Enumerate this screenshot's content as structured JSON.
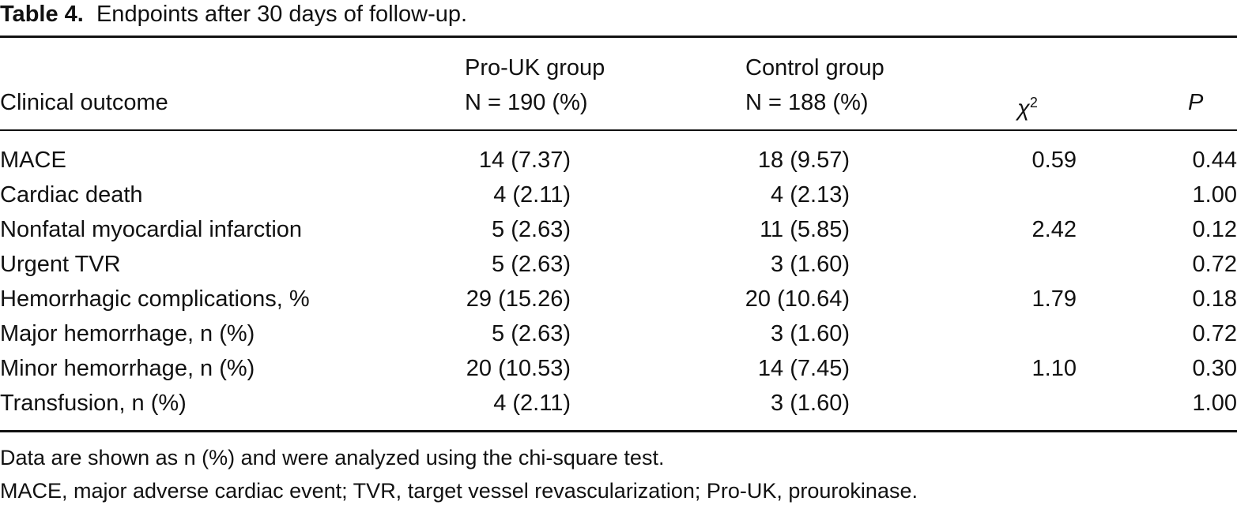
{
  "title": {
    "label": "Table 4.",
    "text": "Endpoints after 30 days of follow-up."
  },
  "table": {
    "header": {
      "outcome": "Clinical outcome",
      "prouk": [
        "Pro-UK group",
        "N = 190 (%)"
      ],
      "control": [
        "Control group",
        "N = 188 (%)"
      ],
      "chi": {
        "symbol": "χ",
        "sup": "2"
      },
      "p": "P"
    },
    "rows": [
      [
        "MACE",
        "14 (7.37)",
        "18 (9.57)",
        "0.59",
        "0.44"
      ],
      [
        "Cardiac death",
        "4 (2.11)",
        "4 (2.13)",
        null,
        "1.00"
      ],
      [
        "Nonfatal myocardial infarction",
        "5 (2.63)",
        "11 (5.85)",
        "2.42",
        "0.12"
      ],
      [
        "Urgent TVR",
        "5 (2.63)",
        "3 (1.60)",
        null,
        "0.72"
      ],
      [
        "Hemorrhagic complications, %",
        "29 (15.26)",
        "20 (10.64)",
        "1.79",
        "0.18"
      ],
      [
        "Major hemorrhage, n (%)",
        "5 (2.63)",
        "3 (1.60)",
        null,
        "0.72"
      ],
      [
        "Minor hemorrhage, n (%)",
        "20 (10.53)",
        "14 (7.45)",
        "1.10",
        "0.30"
      ],
      [
        "Transfusion, n (%)",
        "4 (2.11)",
        "3 (1.60)",
        null,
        "1.00"
      ]
    ]
  },
  "footnotes": [
    "Data are shown as n (%) and were analyzed using the chi-square test.",
    "MACE, major adverse cardiac event; TVR, target vessel revascularization; Pro-UK, prourokinase."
  ]
}
